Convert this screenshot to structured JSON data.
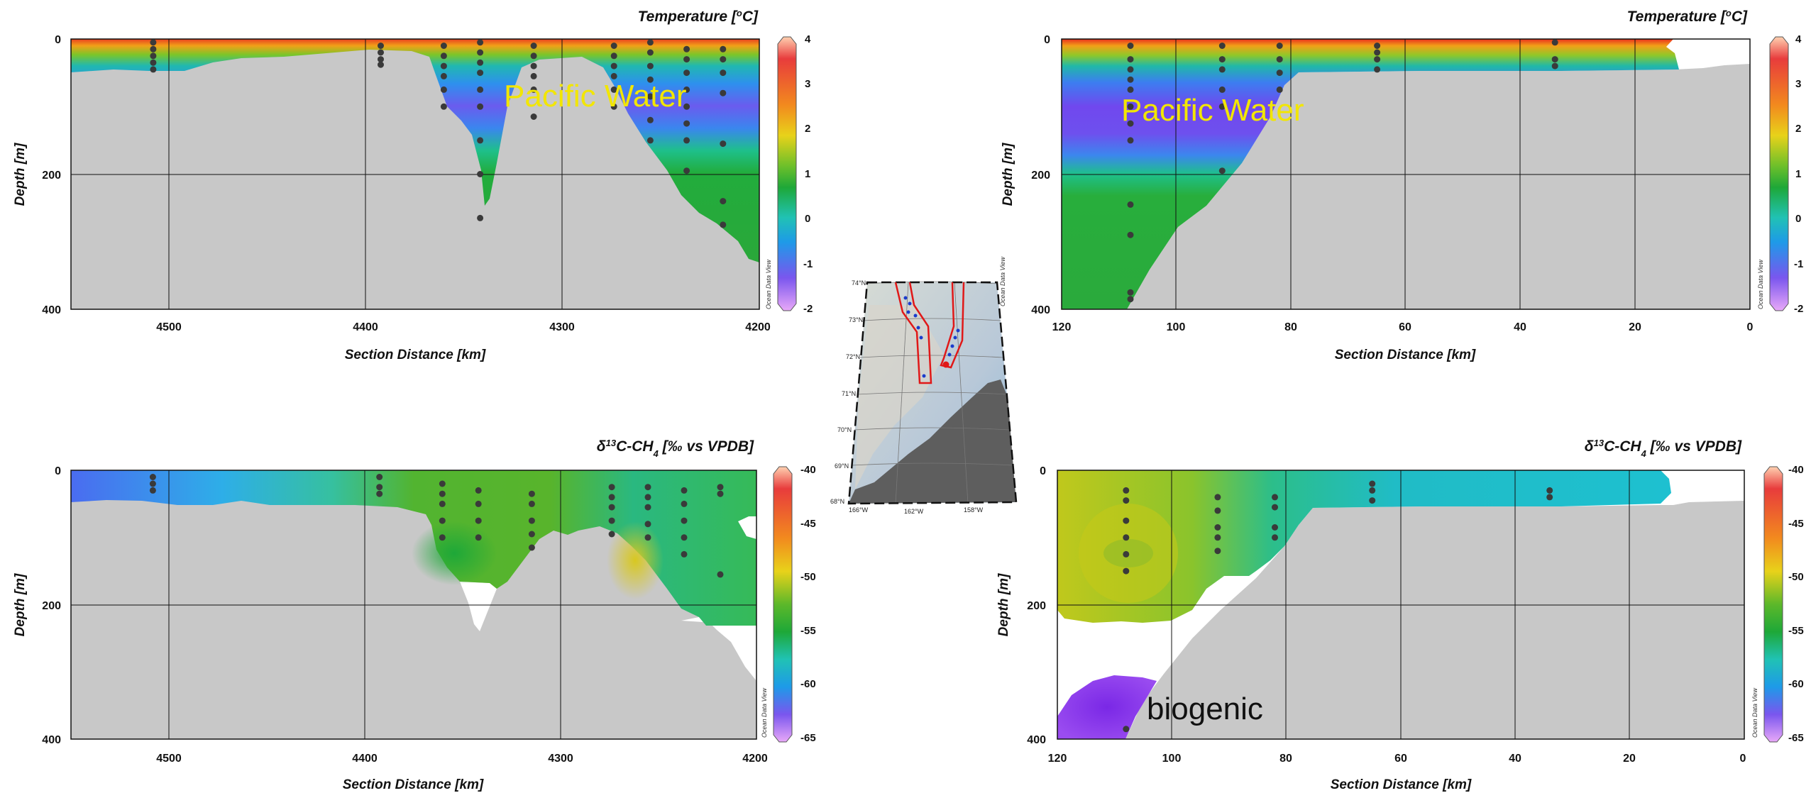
{
  "colors": {
    "terrain": "#c8c8c8",
    "station": "#3a3a3a",
    "overlay_yellow": "#f2e600",
    "map_land": "#5e5e5e",
    "map_route": "#e01818"
  },
  "map": {
    "lat_labels": [
      "74°N",
      "73°N",
      "72°N",
      "71°N",
      "70°N",
      "69°N",
      "68°N"
    ],
    "lon_labels": [
      "166°W",
      "162°W",
      "158°W"
    ],
    "odv_label": "Ocean Data View"
  },
  "chart_data": [
    {
      "id": "temp_left",
      "type": "heatmap",
      "title": "Temperature [°C]",
      "xlabel": "Section Distance [km]",
      "ylabel": "Depth [m]",
      "xlim": [
        4560,
        4200
      ],
      "ylim": [
        0,
        400
      ],
      "xticks": [
        "4500",
        "4400",
        "4300",
        "4200"
      ],
      "yticks": [
        "0",
        "200",
        "400"
      ],
      "colorbar": {
        "min": -2,
        "max": 4,
        "ticks": [
          "4",
          "3",
          "2",
          "1",
          "0",
          "-1",
          "-2"
        ],
        "label": "Ocean Data View"
      },
      "annotation": "Pacific Water",
      "stations": [
        {
          "x": 4517,
          "depths": [
            5,
            15,
            25,
            35,
            45
          ]
        },
        {
          "x": 4398,
          "depths": [
            10,
            20,
            30,
            38
          ]
        },
        {
          "x": 4365,
          "depths": [
            10,
            25,
            40,
            55,
            75,
            100
          ]
        },
        {
          "x": 4346,
          "depths": [
            5,
            20,
            35,
            50,
            75,
            100,
            150,
            200,
            265
          ]
        },
        {
          "x": 4318,
          "depths": [
            10,
            25,
            40,
            55,
            75,
            115
          ]
        },
        {
          "x": 4276,
          "depths": [
            10,
            25,
            40,
            55,
            75,
            100
          ]
        },
        {
          "x": 4257,
          "depths": [
            5,
            20,
            40,
            60,
            85,
            120,
            150
          ]
        },
        {
          "x": 4238,
          "depths": [
            15,
            30,
            50,
            75,
            100,
            125,
            150,
            195
          ]
        },
        {
          "x": 4219,
          "depths": [
            15,
            30,
            50,
            80,
            155,
            240,
            275
          ]
        }
      ]
    },
    {
      "id": "temp_right",
      "type": "heatmap",
      "title": "Temperature [°C]",
      "xlabel": "Section Distance [km]",
      "ylabel": "Depth [m]",
      "xlim": [
        120,
        0
      ],
      "ylim": [
        0,
        400
      ],
      "xticks": [
        "120",
        "100",
        "80",
        "60",
        "40",
        "20",
        "0"
      ],
      "yticks": [
        "0",
        "200",
        "400"
      ],
      "colorbar": {
        "min": -2,
        "max": 4,
        "ticks": [
          "4",
          "3",
          "2",
          "1",
          "0",
          "-1",
          "-2"
        ],
        "label": "Ocean Data View"
      },
      "annotation": "Pacific Water",
      "stations": [
        {
          "x": 108,
          "depths": [
            10,
            30,
            45,
            60,
            75,
            100,
            125,
            150,
            245,
            290,
            375,
            385
          ]
        },
        {
          "x": 92,
          "depths": [
            10,
            30,
            45,
            75,
            100,
            195
          ]
        },
        {
          "x": 82,
          "depths": [
            10,
            30,
            50,
            75
          ]
        },
        {
          "x": 65,
          "depths": [
            10,
            20,
            30,
            45
          ]
        },
        {
          "x": 34,
          "depths": [
            5,
            30,
            40
          ]
        }
      ]
    },
    {
      "id": "d13c_left",
      "type": "heatmap",
      "title": "δ13C-CH4 [‰ vs VPDB]",
      "xlabel": "Section Distance [km]",
      "ylabel": "Depth [m]",
      "xlim": [
        4560,
        4200
      ],
      "ylim": [
        0,
        400
      ],
      "xticks": [
        "4500",
        "4400",
        "4300",
        "4200"
      ],
      "yticks": [
        "0",
        "200",
        "400"
      ],
      "colorbar": {
        "min": -65,
        "max": -40,
        "ticks": [
          "-40",
          "-45",
          "-50",
          "-55",
          "-60",
          "-65"
        ],
        "label": "Ocean Data View"
      },
      "stations": [
        {
          "x": 4517,
          "depths": [
            10,
            20,
            30
          ]
        },
        {
          "x": 4398,
          "depths": [
            10,
            25,
            35
          ]
        },
        {
          "x": 4365,
          "depths": [
            20,
            35,
            50,
            75,
            100
          ]
        },
        {
          "x": 4346,
          "depths": [
            30,
            50,
            75,
            100
          ]
        },
        {
          "x": 4318,
          "depths": [
            35,
            50,
            75,
            95,
            115
          ]
        },
        {
          "x": 4276,
          "depths": [
            25,
            40,
            55,
            75,
            95
          ]
        },
        {
          "x": 4257,
          "depths": [
            25,
            40,
            55,
            80,
            100
          ]
        },
        {
          "x": 4238,
          "depths": [
            30,
            50,
            75,
            100,
            125
          ]
        },
        {
          "x": 4219,
          "depths": [
            25,
            35,
            155
          ]
        }
      ]
    },
    {
      "id": "d13c_right",
      "type": "heatmap",
      "title": "δ13C-CH4 [‰ vs VPDB]",
      "xlabel": "Section Distance [km]",
      "ylabel": "Depth [m]",
      "xlim": [
        120,
        0
      ],
      "ylim": [
        0,
        400
      ],
      "xticks": [
        "120",
        "100",
        "80",
        "60",
        "40",
        "20",
        "0"
      ],
      "yticks": [
        "0",
        "200",
        "400"
      ],
      "colorbar": {
        "min": -65,
        "max": -40,
        "ticks": [
          "-40",
          "-45",
          "-50",
          "-55",
          "-60",
          "-65"
        ],
        "label": "Ocean Data View"
      },
      "annotation": "biogenic",
      "stations": [
        {
          "x": 108,
          "depths": [
            30,
            45,
            75,
            100,
            125,
            150,
            385
          ]
        },
        {
          "x": 92,
          "depths": [
            40,
            60,
            85,
            100,
            120
          ]
        },
        {
          "x": 82,
          "depths": [
            40,
            55,
            85,
            100
          ]
        },
        {
          "x": 65,
          "depths": [
            20,
            30,
            45
          ]
        },
        {
          "x": 34,
          "depths": [
            30,
            40
          ]
        }
      ]
    }
  ]
}
